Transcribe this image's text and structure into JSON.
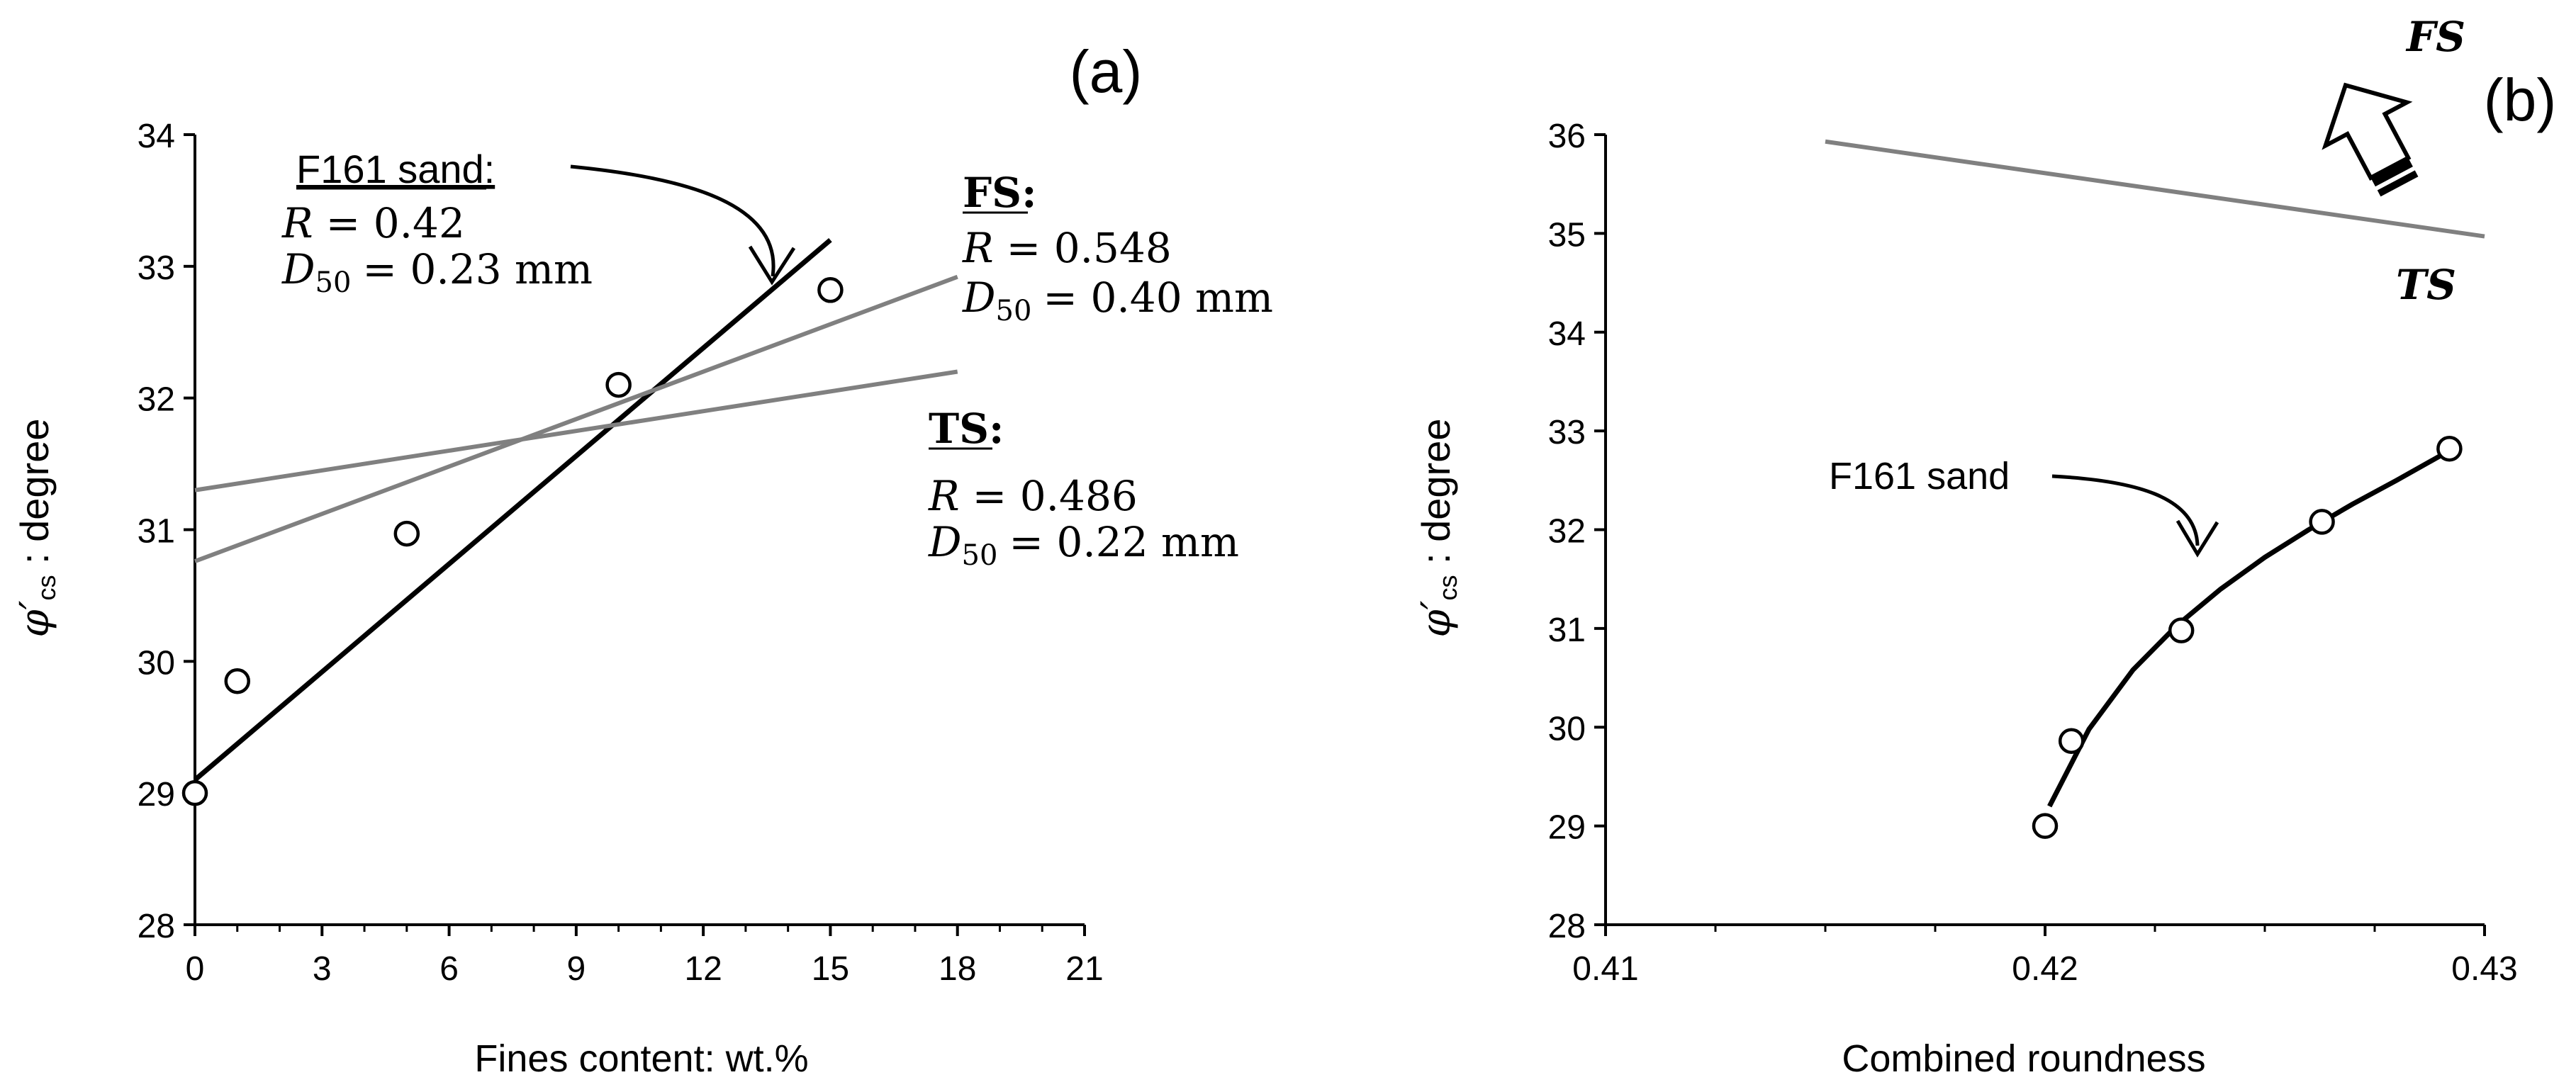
{
  "chart_data": [
    {
      "id": "a",
      "panel_label": "(a)",
      "type": "scatter",
      "xlabel": "Fines content: wt.%",
      "ylabel_symbol": "φ′",
      "ylabel_sub": "cs",
      "ylabel_rest": " : degree",
      "xlim": [
        0,
        21
      ],
      "ylim": [
        28,
        34
      ],
      "xticks": [
        0,
        3,
        6,
        9,
        12,
        15,
        18,
        21
      ],
      "yticks": [
        28,
        29,
        30,
        31,
        32,
        33,
        34
      ],
      "points": {
        "name": "F161 sand",
        "x": [
          0,
          1,
          5,
          10,
          15
        ],
        "y": [
          29.0,
          29.85,
          30.97,
          32.1,
          32.82
        ]
      },
      "lines": [
        {
          "name": "F161 sand",
          "color": "#000000",
          "x": [
            0,
            15
          ],
          "y": [
            29.1,
            33.2
          ]
        },
        {
          "name": "FS",
          "color": "#808080",
          "x": [
            0,
            18
          ],
          "y": [
            30.76,
            32.92
          ]
        },
        {
          "name": "TS",
          "color": "#808080",
          "x": [
            0,
            18
          ],
          "y": [
            31.3,
            32.2
          ]
        }
      ],
      "annotations": {
        "f161": {
          "title": "F161 sand:",
          "r_label": "R",
          "r_value": "= 0.42",
          "d_label": "D",
          "d_sub": "50",
          "d_value": "= 0.23 mm"
        },
        "fs": {
          "title": "FS:",
          "r_label": "R",
          "r_value": "= 0.548",
          "d_label": "D",
          "d_sub": "50",
          "d_value": "= 0.40 mm"
        },
        "ts": {
          "title": "TS:",
          "r_label": "R",
          "r_value": "= 0.486",
          "d_label": "D",
          "d_sub": "50",
          "d_value": "= 0.22 mm"
        }
      }
    },
    {
      "id": "b",
      "panel_label": "(b)",
      "type": "scatter",
      "xlabel": "Combined roundness",
      "ylabel_symbol": "φ′",
      "ylabel_sub": "cs",
      "ylabel_rest": " : degree",
      "xlim": [
        0.41,
        0.43
      ],
      "ylim": [
        28,
        36
      ],
      "xticks": [
        0.41,
        0.42,
        0.43
      ],
      "xtick_labels": [
        "0.41",
        "0.42",
        "0.43"
      ],
      "yticks": [
        28,
        29,
        30,
        31,
        32,
        33,
        34,
        35,
        36
      ],
      "points": {
        "name": "F161 sand",
        "x": [
          0.42,
          0.4206,
          0.4231,
          0.4263,
          0.4292
        ],
        "y": [
          29.0,
          29.86,
          30.98,
          32.08,
          32.82
        ]
      },
      "curve": {
        "name": "F161 sand",
        "x": [
          0.4201,
          0.421,
          0.422,
          0.423,
          0.424,
          0.425,
          0.426,
          0.427,
          0.428,
          0.4292
        ],
        "y": [
          29.2,
          29.98,
          30.58,
          31.03,
          31.4,
          31.72,
          32.0,
          32.26,
          32.5,
          32.8
        ]
      },
      "trend": {
        "name": "TS to FS",
        "x": [
          0.415,
          0.43
        ],
        "y": [
          35.93,
          34.97
        ]
      },
      "annotations": {
        "f161_label": "F161 sand",
        "fs_label": "FS",
        "ts_label": "TS"
      }
    }
  ]
}
